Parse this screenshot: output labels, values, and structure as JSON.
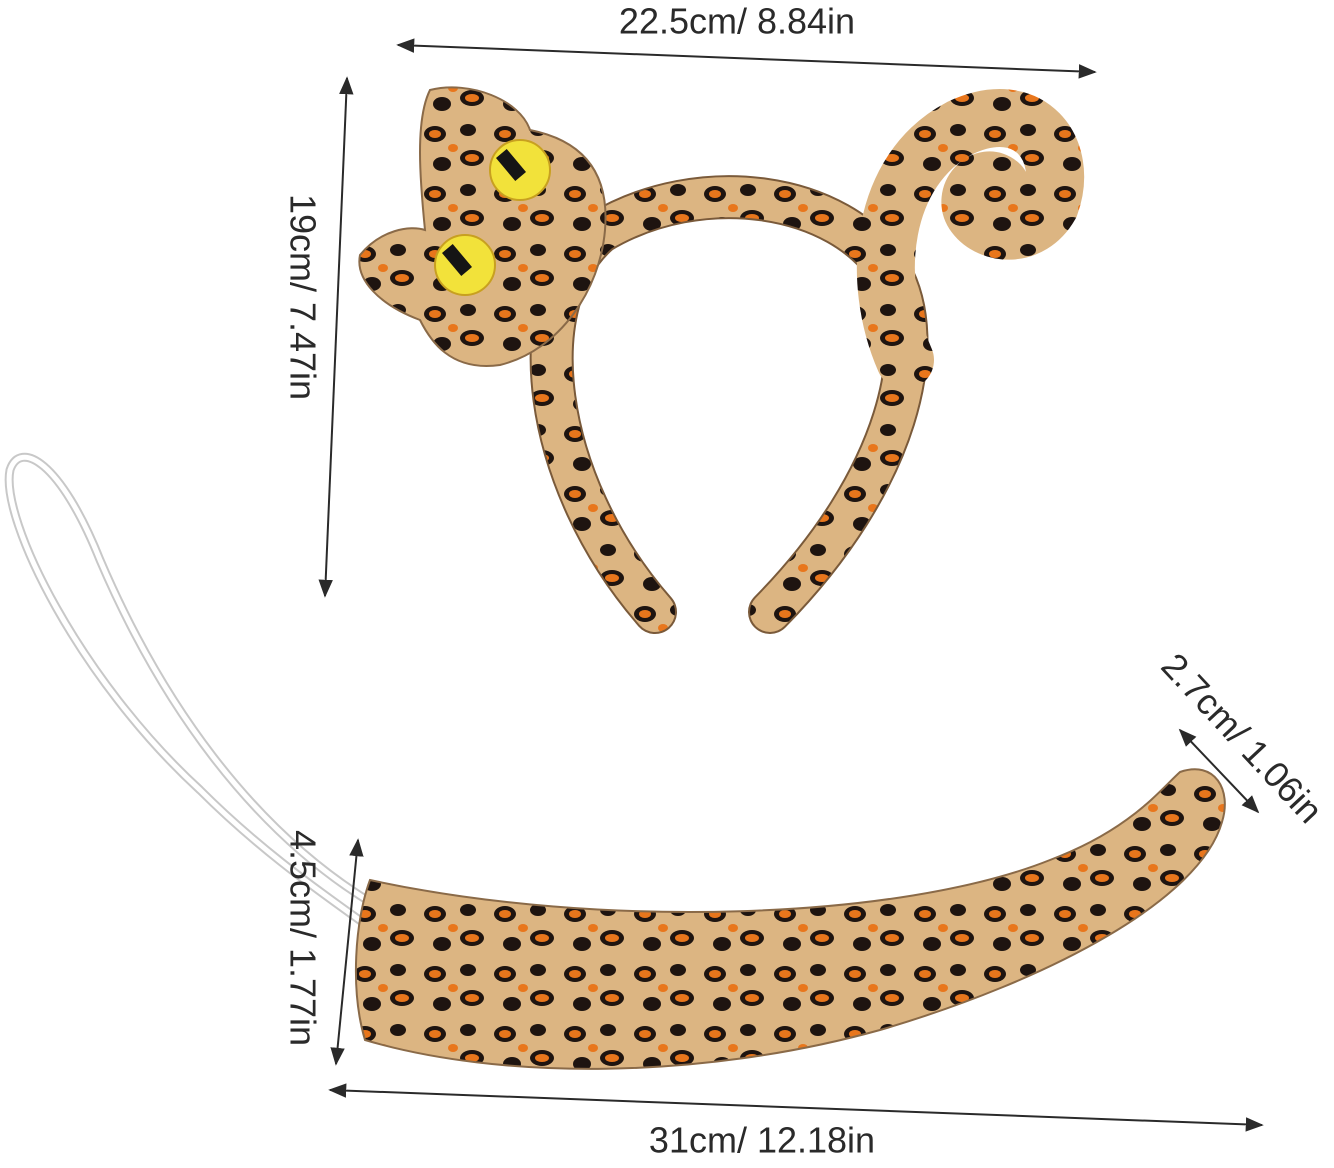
{
  "dimensions": [
    {
      "label": "22.5cm/ 8.84in"
    },
    {
      "label": "19cm/ 7.47in"
    },
    {
      "label": "2.7cm/ 1.06in"
    },
    {
      "label": "4.5cm/ 1.77in"
    },
    {
      "label": "31cm/ 12.18in"
    }
  ]
}
